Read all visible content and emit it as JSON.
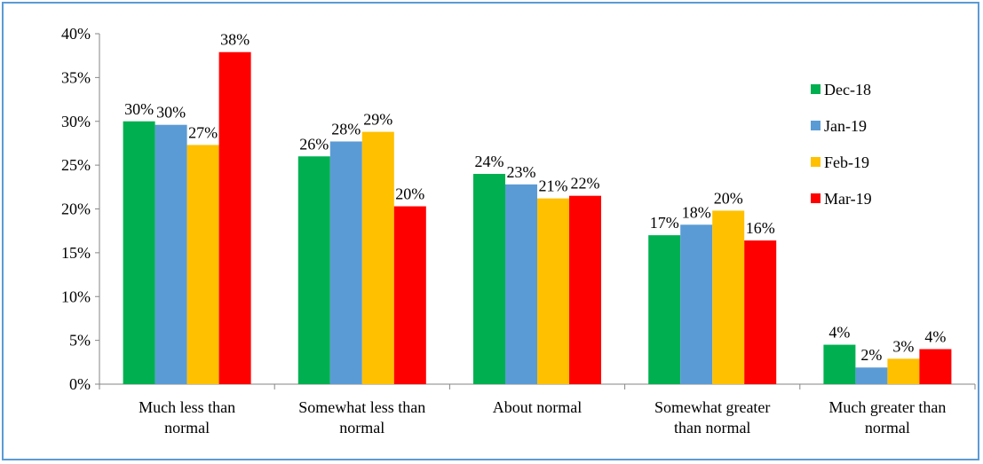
{
  "chart_data": {
    "type": "bar",
    "categories": [
      [
        "Much less than",
        "normal"
      ],
      [
        "Somewhat less than",
        "normal"
      ],
      [
        "About normal"
      ],
      [
        "Somewhat greater",
        "than normal"
      ],
      [
        "Much greater than",
        "normal"
      ]
    ],
    "series": [
      {
        "name": "Dec-18",
        "color": "#00b050",
        "values": [
          30.0,
          26.0,
          24.0,
          17.0,
          4.5
        ],
        "labels": [
          "30%",
          "26%",
          "24%",
          "17%",
          "4%"
        ]
      },
      {
        "name": "Jan-19",
        "color": "#5b9bd5",
        "values": [
          29.6,
          27.7,
          22.8,
          18.2,
          1.9
        ],
        "labels": [
          "30%",
          "28%",
          "23%",
          "18%",
          "2%"
        ]
      },
      {
        "name": "Feb-19",
        "color": "#ffc000",
        "values": [
          27.3,
          28.8,
          21.2,
          19.8,
          2.9
        ],
        "labels": [
          "27%",
          "29%",
          "21%",
          "20%",
          "3%"
        ]
      },
      {
        "name": "Mar-19",
        "color": "#ff0000",
        "values": [
          37.9,
          20.3,
          21.5,
          16.4,
          4.0
        ],
        "labels": [
          "38%",
          "20%",
          "22%",
          "16%",
          "4%"
        ]
      }
    ],
    "yticks": [
      0,
      5,
      10,
      15,
      20,
      25,
      30,
      35,
      40
    ],
    "ytick_labels": [
      "0%",
      "5%",
      "10%",
      "15%",
      "20%",
      "25%",
      "30%",
      "35%",
      "40%"
    ],
    "ylim": [
      0,
      40
    ],
    "grid": false,
    "legend": "right",
    "title": "",
    "xlabel": "",
    "ylabel": ""
  }
}
